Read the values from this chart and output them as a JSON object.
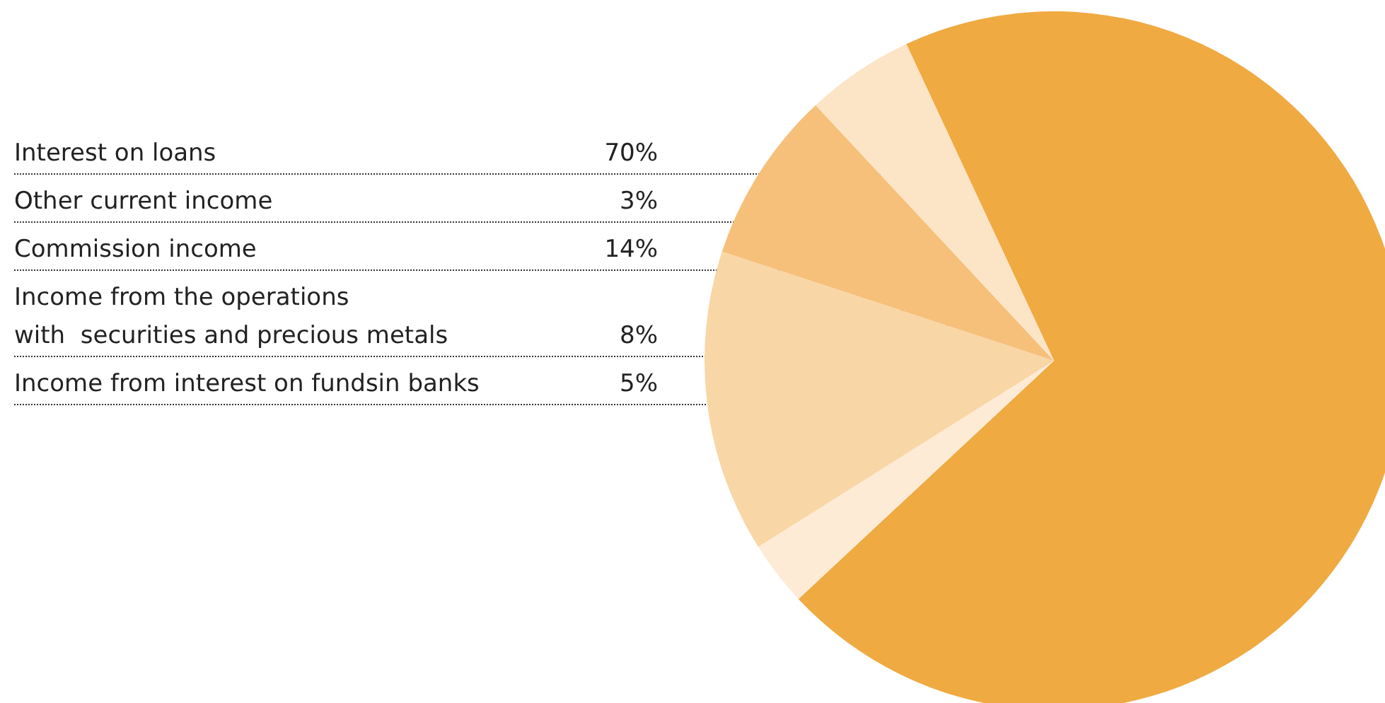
{
  "chart_data": {
    "type": "pie",
    "categories": [
      "Interest on loans",
      "Other current income",
      "Commission income",
      "Income from the operations\nwith  securities and precious metals",
      "Income from interest on fundsin banks"
    ],
    "values": [
      70,
      3,
      14,
      8,
      5
    ],
    "value_labels": [
      "70%",
      "3%",
      "14%",
      "8%",
      "5%"
    ],
    "colors": [
      "#f0aa42",
      "#fdebd6",
      "#f9d6a6",
      "#f6c07a",
      "#fce4c6"
    ],
    "legend": false
  }
}
